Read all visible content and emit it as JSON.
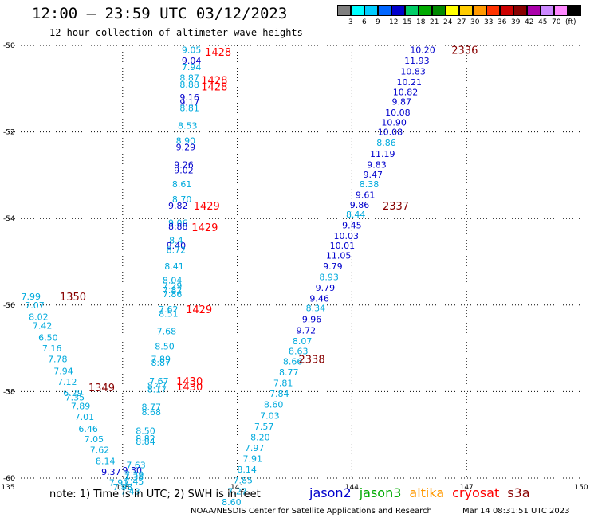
{
  "header": {
    "title": "12:00 – 23:59 UTC 03/12/2023",
    "subtitle": "12 hour collection of altimeter wave heights"
  },
  "colorbar": {
    "unit": "(ft)",
    "items": [
      {
        "color": "#7f7f7f",
        "label": ""
      },
      {
        "color": "#00ffff",
        "label": "3"
      },
      {
        "color": "#00ccff",
        "label": "6"
      },
      {
        "color": "#0066ff",
        "label": "9"
      },
      {
        "color": "#0000cc",
        "label": "12"
      },
      {
        "color": "#00cc66",
        "label": "15"
      },
      {
        "color": "#00aa00",
        "label": "18"
      },
      {
        "color": "#008800",
        "label": "21"
      },
      {
        "color": "#ffff00",
        "label": "24"
      },
      {
        "color": "#ffcc00",
        "label": "27"
      },
      {
        "color": "#ff9900",
        "label": "30"
      },
      {
        "color": "#ff3300",
        "label": "33"
      },
      {
        "color": "#cc0000",
        "label": "36"
      },
      {
        "color": "#880000",
        "label": "39"
      },
      {
        "color": "#aa00aa",
        "label": "42"
      },
      {
        "color": "#cc88ff",
        "label": "45"
      },
      {
        "color": "#ff88ff",
        "label": "70"
      },
      {
        "color": "#000000",
        "label": ""
      }
    ]
  },
  "note": "note:  1) Time is in UTC; 2) SWH is in feet",
  "satellites": [
    {
      "name": "jason2",
      "color": "#0000cc"
    },
    {
      "name": "jason3",
      "color": "#00aa00"
    },
    {
      "name": "altika",
      "color": "#ff9900"
    },
    {
      "name": "cryosat",
      "color": "#ff0000"
    },
    {
      "name": "s3a",
      "color": "#880000"
    }
  ],
  "footer": {
    "credit": "NOAA/NESDIS Center for Satellite Applications and Research",
    "timestamp": "Mar 14 08:31:51 UTC 2023"
  },
  "chart_data": {
    "type": "scatter",
    "title": "12:00 – 23:59 UTC 03/12/2023",
    "subtitle": "12 hour collection of altimeter wave heights",
    "xlim": [
      135,
      150
    ],
    "ylim": [
      -60,
      -50
    ],
    "x_ticks": [
      135,
      138,
      141,
      144,
      147,
      150
    ],
    "y_ticks": [
      -50,
      -52,
      -54,
      -56,
      -58,
      -60
    ],
    "grid": true,
    "colors": {
      "light": "#00aadd",
      "dark": "#0000cc",
      "red": "#ff0000",
      "maroon": "#880000"
    },
    "points": [
      {
        "x": 139.8,
        "y": -50.1,
        "label": "9.05",
        "c": "light"
      },
      {
        "x": 139.8,
        "y": -50.35,
        "label": "9.04",
        "c": "dark"
      },
      {
        "x": 139.8,
        "y": -50.5,
        "label": "7.94",
        "c": "light"
      },
      {
        "x": 139.75,
        "y": -50.75,
        "label": "8.87",
        "c": "light"
      },
      {
        "x": 139.75,
        "y": -50.9,
        "label": "8.88",
        "c": "light"
      },
      {
        "x": 139.75,
        "y": -51.2,
        "label": "9.16",
        "c": "dark"
      },
      {
        "x": 139.75,
        "y": -51.32,
        "label": "9.17",
        "c": "dark"
      },
      {
        "x": 139.75,
        "y": -51.45,
        "label": "8.81",
        "c": "light"
      },
      {
        "x": 139.7,
        "y": -51.85,
        "label": "8.53",
        "c": "light"
      },
      {
        "x": 139.65,
        "y": -52.2,
        "label": "8.90",
        "c": "light"
      },
      {
        "x": 139.65,
        "y": -52.35,
        "label": "9.29",
        "c": "dark"
      },
      {
        "x": 139.6,
        "y": -52.75,
        "label": "9.26",
        "c": "dark"
      },
      {
        "x": 139.6,
        "y": -52.88,
        "label": "9.02",
        "c": "dark"
      },
      {
        "x": 139.55,
        "y": -53.2,
        "label": "8.61",
        "c": "light"
      },
      {
        "x": 139.55,
        "y": -53.55,
        "label": "8.70",
        "c": "light"
      },
      {
        "x": 139.45,
        "y": -53.7,
        "label": "9.82",
        "c": "dark"
      },
      {
        "x": 139.45,
        "y": -54.1,
        "label": "9.06",
        "c": "light"
      },
      {
        "x": 139.45,
        "y": -54.18,
        "label": "8.88",
        "c": "dark"
      },
      {
        "x": 139.4,
        "y": -54.5,
        "label": "8.4",
        "c": "light"
      },
      {
        "x": 139.4,
        "y": -54.62,
        "label": "8.40",
        "c": "dark"
      },
      {
        "x": 139.4,
        "y": -54.72,
        "label": "8.72",
        "c": "light"
      },
      {
        "x": 139.35,
        "y": -55.1,
        "label": "8.41",
        "c": "light"
      },
      {
        "x": 139.3,
        "y": -55.42,
        "label": "8.04",
        "c": "light"
      },
      {
        "x": 139.3,
        "y": -55.55,
        "label": "7.29",
        "c": "light"
      },
      {
        "x": 139.3,
        "y": -55.65,
        "label": "7.82",
        "c": "light"
      },
      {
        "x": 139.3,
        "y": -55.75,
        "label": "7.86",
        "c": "light"
      },
      {
        "x": 139.2,
        "y": -56.1,
        "label": "7.62",
        "c": "light"
      },
      {
        "x": 139.2,
        "y": -56.2,
        "label": "8.51",
        "c": "light"
      },
      {
        "x": 139.15,
        "y": -56.6,
        "label": "7.68",
        "c": "light"
      },
      {
        "x": 139.1,
        "y": -56.95,
        "label": "8.50",
        "c": "light"
      },
      {
        "x": 139.0,
        "y": -57.25,
        "label": "7.89",
        "c": "light"
      },
      {
        "x": 139.0,
        "y": -57.33,
        "label": "8.87",
        "c": "light"
      },
      {
        "x": 138.95,
        "y": -57.75,
        "label": "7.67",
        "c": "light"
      },
      {
        "x": 138.9,
        "y": -57.85,
        "label": "8.47",
        "c": "light"
      },
      {
        "x": 138.9,
        "y": -57.95,
        "label": "8.17",
        "c": "light"
      },
      {
        "x": 138.75,
        "y": -58.35,
        "label": "8.77",
        "c": "light"
      },
      {
        "x": 138.75,
        "y": -58.47,
        "label": "8.68",
        "c": "light"
      },
      {
        "x": 138.6,
        "y": -58.9,
        "label": "8.50",
        "c": "light"
      },
      {
        "x": 138.6,
        "y": -59.08,
        "label": "8.82",
        "c": "light"
      },
      {
        "x": 138.6,
        "y": -59.15,
        "label": "8.84",
        "c": "light"
      },
      {
        "x": 138.35,
        "y": -59.7,
        "label": "7.63",
        "c": "light"
      },
      {
        "x": 138.25,
        "y": -59.82,
        "label": "9.30",
        "c": "dark"
      },
      {
        "x": 138.3,
        "y": -59.92,
        "label": "7.39",
        "c": "light"
      },
      {
        "x": 138.3,
        "y": -59.97,
        "label": "7.35",
        "c": "light"
      },
      {
        "x": 138.3,
        "y": -60.07,
        "label": "7.45",
        "c": "light"
      },
      {
        "x": 135.6,
        "y": -55.8,
        "label": "7.99",
        "c": "light"
      },
      {
        "x": 135.7,
        "y": -56.0,
        "label": "7.07",
        "c": "light"
      },
      {
        "x": 135.8,
        "y": -56.27,
        "label": "8.02",
        "c": "light"
      },
      {
        "x": 135.9,
        "y": -56.47,
        "label": "7.42",
        "c": "light"
      },
      {
        "x": 136.05,
        "y": -56.75,
        "label": "6.50",
        "c": "light"
      },
      {
        "x": 136.15,
        "y": -57.0,
        "label": "7.16",
        "c": "light"
      },
      {
        "x": 136.3,
        "y": -57.25,
        "label": "7.78",
        "c": "light"
      },
      {
        "x": 136.45,
        "y": -57.52,
        "label": "7.94",
        "c": "light"
      },
      {
        "x": 136.55,
        "y": -57.77,
        "label": "7.12",
        "c": "light"
      },
      {
        "x": 136.7,
        "y": -58.03,
        "label": "6.29",
        "c": "light"
      },
      {
        "x": 136.75,
        "y": -58.13,
        "label": "7.35",
        "c": "light"
      },
      {
        "x": 136.9,
        "y": -58.33,
        "label": "7.89",
        "c": "light"
      },
      {
        "x": 137.0,
        "y": -58.58,
        "label": "7.01",
        "c": "light"
      },
      {
        "x": 137.1,
        "y": -58.86,
        "label": "6.46",
        "c": "light"
      },
      {
        "x": 137.25,
        "y": -59.1,
        "label": "7.05",
        "c": "light"
      },
      {
        "x": 137.4,
        "y": -59.35,
        "label": "7.62",
        "c": "light"
      },
      {
        "x": 137.55,
        "y": -59.6,
        "label": "8.14",
        "c": "light"
      },
      {
        "x": 137.7,
        "y": -59.85,
        "label": "9.37",
        "c": "dark"
      },
      {
        "x": 137.9,
        "y": -60.1,
        "label": "7.91",
        "c": "light"
      },
      {
        "x": 138.0,
        "y": -60.2,
        "label": "7.98",
        "c": "light"
      },
      {
        "x": 138.2,
        "y": -60.3,
        "label": "7.43",
        "c": "light"
      },
      {
        "x": 145.85,
        "y": -50.1,
        "label": "10.20",
        "c": "dark"
      },
      {
        "x": 145.7,
        "y": -50.35,
        "label": "11.93",
        "c": "dark"
      },
      {
        "x": 145.6,
        "y": -50.6,
        "label": "10.83",
        "c": "dark"
      },
      {
        "x": 145.5,
        "y": -50.85,
        "label": "10.21",
        "c": "dark"
      },
      {
        "x": 145.4,
        "y": -51.08,
        "label": "10.82",
        "c": "dark"
      },
      {
        "x": 145.3,
        "y": -51.3,
        "label": "9.87",
        "c": "dark"
      },
      {
        "x": 145.2,
        "y": -51.55,
        "label": "10.08",
        "c": "dark"
      },
      {
        "x": 145.1,
        "y": -51.78,
        "label": "10.90",
        "c": "dark"
      },
      {
        "x": 145.0,
        "y": -52.0,
        "label": "10.08",
        "c": "dark"
      },
      {
        "x": 144.9,
        "y": -52.25,
        "label": "8.86",
        "c": "light"
      },
      {
        "x": 144.8,
        "y": -52.5,
        "label": "11.19",
        "c": "dark"
      },
      {
        "x": 144.65,
        "y": -52.75,
        "label": "9.83",
        "c": "dark"
      },
      {
        "x": 144.55,
        "y": -52.98,
        "label": "9.47",
        "c": "dark"
      },
      {
        "x": 144.45,
        "y": -53.2,
        "label": "8.38",
        "c": "light"
      },
      {
        "x": 144.35,
        "y": -53.45,
        "label": "9.61",
        "c": "dark"
      },
      {
        "x": 144.2,
        "y": -53.68,
        "label": "9.86",
        "c": "dark"
      },
      {
        "x": 144.1,
        "y": -53.9,
        "label": "8.44",
        "c": "light"
      },
      {
        "x": 144.0,
        "y": -54.15,
        "label": "9.45",
        "c": "dark"
      },
      {
        "x": 143.85,
        "y": -54.4,
        "label": "10.03",
        "c": "dark"
      },
      {
        "x": 143.75,
        "y": -54.62,
        "label": "10.01",
        "c": "dark"
      },
      {
        "x": 143.65,
        "y": -54.85,
        "label": "11.05",
        "c": "dark"
      },
      {
        "x": 143.5,
        "y": -55.1,
        "label": "9.79",
        "c": "dark"
      },
      {
        "x": 143.4,
        "y": -55.35,
        "label": "8.93",
        "c": "light"
      },
      {
        "x": 143.3,
        "y": -55.6,
        "label": "9.79",
        "c": "dark"
      },
      {
        "x": 143.15,
        "y": -55.85,
        "label": "9.46",
        "c": "dark"
      },
      {
        "x": 143.05,
        "y": -56.07,
        "label": "8.34",
        "c": "light"
      },
      {
        "x": 142.95,
        "y": -56.33,
        "label": "9.96",
        "c": "dark"
      },
      {
        "x": 142.8,
        "y": -56.58,
        "label": "9.72",
        "c": "dark"
      },
      {
        "x": 142.7,
        "y": -56.83,
        "label": "8.07",
        "c": "light"
      },
      {
        "x": 142.6,
        "y": -57.06,
        "label": "8.63",
        "c": "light"
      },
      {
        "x": 142.45,
        "y": -57.3,
        "label": "8.66",
        "c": "light"
      },
      {
        "x": 142.35,
        "y": -57.55,
        "label": "8.77",
        "c": "light"
      },
      {
        "x": 142.2,
        "y": -57.8,
        "label": "7.81",
        "c": "light"
      },
      {
        "x": 142.1,
        "y": -58.05,
        "label": "7.84",
        "c": "light"
      },
      {
        "x": 141.95,
        "y": -58.3,
        "label": "8.60",
        "c": "light"
      },
      {
        "x": 141.85,
        "y": -58.55,
        "label": "7.03",
        "c": "light"
      },
      {
        "x": 141.7,
        "y": -58.8,
        "label": "7.57",
        "c": "light"
      },
      {
        "x": 141.6,
        "y": -59.05,
        "label": "8.20",
        "c": "light"
      },
      {
        "x": 141.45,
        "y": -59.3,
        "label": "7.97",
        "c": "light"
      },
      {
        "x": 141.4,
        "y": -59.55,
        "label": "7.91",
        "c": "light"
      },
      {
        "x": 141.25,
        "y": -59.8,
        "label": "8.14",
        "c": "light"
      },
      {
        "x": 141.15,
        "y": -60.05,
        "label": "7.85",
        "c": "light"
      },
      {
        "x": 141.0,
        "y": -60.3,
        "label": "7.27",
        "c": "light"
      },
      {
        "x": 140.85,
        "y": -60.55,
        "label": "8.60",
        "c": "light"
      }
    ],
    "time_labels": [
      {
        "x": 140.5,
        "y": -50.15,
        "label": "1428",
        "c": "red"
      },
      {
        "x": 140.4,
        "y": -50.8,
        "label": "1428",
        "c": "red"
      },
      {
        "x": 140.4,
        "y": -50.95,
        "label": "1428",
        "c": "red"
      },
      {
        "x": 140.2,
        "y": -53.7,
        "label": "1429",
        "c": "red"
      },
      {
        "x": 140.15,
        "y": -54.2,
        "label": "1429",
        "c": "red"
      },
      {
        "x": 140.0,
        "y": -56.1,
        "label": "1429",
        "c": "red"
      },
      {
        "x": 139.75,
        "y": -57.75,
        "label": "1430",
        "c": "red"
      },
      {
        "x": 139.75,
        "y": -57.88,
        "label": "1430",
        "c": "red"
      },
      {
        "x": 136.7,
        "y": -55.8,
        "label": "1350",
        "c": "maroon"
      },
      {
        "x": 137.45,
        "y": -57.9,
        "label": "1349",
        "c": "maroon"
      },
      {
        "x": 146.95,
        "y": -50.1,
        "label": "2336",
        "c": "maroon"
      },
      {
        "x": 145.15,
        "y": -53.7,
        "label": "2337",
        "c": "maroon"
      },
      {
        "x": 142.95,
        "y": -57.25,
        "label": "2338",
        "c": "maroon"
      }
    ]
  }
}
